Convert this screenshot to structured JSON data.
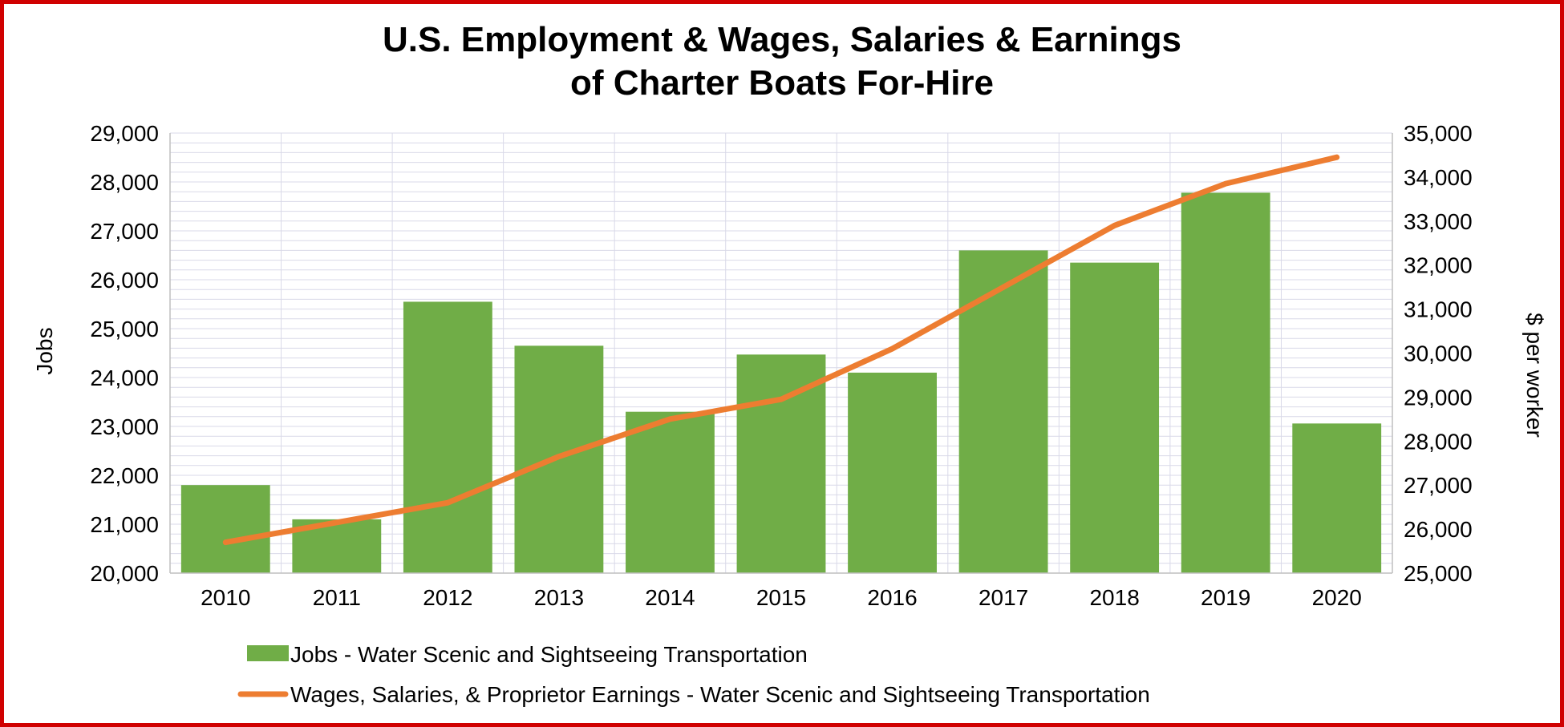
{
  "colors": {
    "border": "#d00000",
    "bar": "#70ad47",
    "line": "#ed7d31",
    "grid": "#d9d9e8"
  },
  "chart_data": {
    "type": "bar",
    "title": "U.S. Employment & Wages, Salaries & Earnings of Charter Boats For-Hire",
    "title_lines": [
      "U.S. Employment & Wages, Salaries & Earnings",
      "of Charter Boats For-Hire"
    ],
    "categories": [
      "2010",
      "2011",
      "2012",
      "2013",
      "2014",
      "2015",
      "2016",
      "2017",
      "2018",
      "2019",
      "2020"
    ],
    "ylabel": "Jobs",
    "y2label": "$ per worker",
    "ylim": [
      20000,
      29000
    ],
    "y2lim": [
      25000,
      35000
    ],
    "yticks": [
      "20,000",
      "21,000",
      "22,000",
      "23,000",
      "24,000",
      "25,000",
      "26,000",
      "27,000",
      "28,000",
      "29,000"
    ],
    "y2ticks": [
      "25,000",
      "26,000",
      "27,000",
      "28,000",
      "29,000",
      "30,000",
      "31,000",
      "32,000",
      "33,000",
      "34,000",
      "35,000"
    ],
    "grid": true,
    "legend_position": "bottom",
    "series": [
      {
        "name": "Jobs - Water Scenic and Sightseeing Transportation",
        "kind": "bar",
        "axis": "left",
        "values": [
          21800,
          21100,
          25550,
          24650,
          23300,
          24470,
          24100,
          26600,
          26350,
          27780,
          23060
        ]
      },
      {
        "name": "Wages, Salaries, & Proprietor Earnings - Water Scenic and Sightseeing Transportation",
        "kind": "line",
        "axis": "right",
        "values": [
          25700,
          26150,
          26600,
          27650,
          28500,
          28950,
          30100,
          31500,
          32900,
          33850,
          34450
        ]
      }
    ]
  }
}
